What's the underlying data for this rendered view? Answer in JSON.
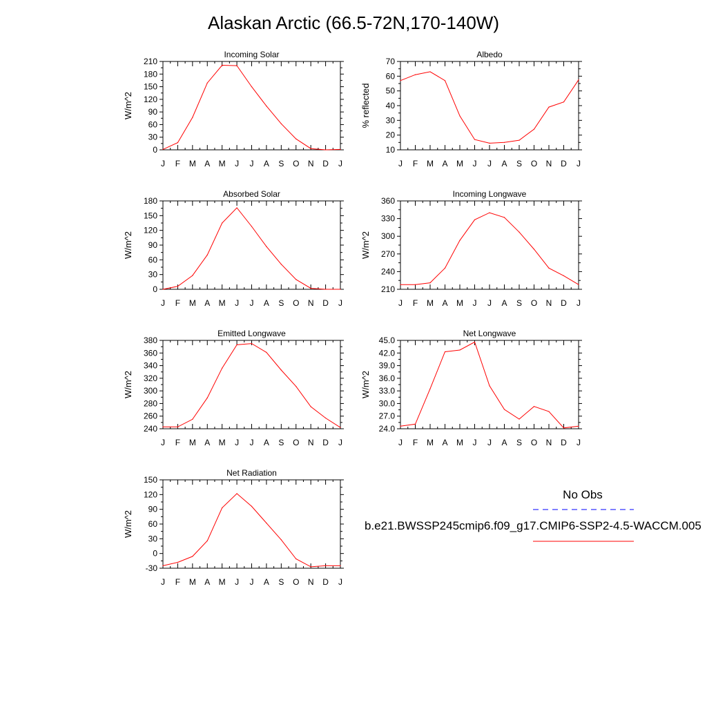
{
  "page_title": "Alaskan Arctic (66.5-72N,170-140W)",
  "colors": {
    "model_line": "#ff0000",
    "obs_line": "#0000ff",
    "axes": "#000000"
  },
  "legend": {
    "obs_label": "No Obs",
    "model_label": "b.e21.BWSSP245cmip6.f09_g17.CMIP6-SSP2-4.5-WACCM.005"
  },
  "chart_data": [
    {
      "type": "line",
      "title": "Incoming Solar",
      "ylabel": "W/m^2",
      "ylim": [
        0,
        210
      ],
      "yticks": [
        "0",
        "30",
        "60",
        "90",
        "120",
        "150",
        "180",
        "210"
      ],
      "categories": [
        "J",
        "F",
        "M",
        "A",
        "M",
        "J",
        "J",
        "A",
        "S",
        "O",
        "N",
        "D",
        "J"
      ],
      "series": [
        {
          "values": [
            1,
            17,
            77,
            159,
            201,
            200,
            150,
            104,
            62,
            26,
            3,
            0,
            1
          ]
        }
      ]
    },
    {
      "type": "line",
      "title": "Albedo",
      "ylabel": "% reflected",
      "ylim": [
        10,
        70
      ],
      "yticks": [
        "10",
        "20",
        "30",
        "40",
        "50",
        "60",
        "70"
      ],
      "categories": [
        "J",
        "F",
        "M",
        "A",
        "M",
        "J",
        "J",
        "A",
        "S",
        "O",
        "N",
        "D",
        "J"
      ],
      "series": [
        {
          "values": [
            57,
            61,
            63,
            57,
            33,
            17,
            14.5,
            15,
            16.5,
            24,
            39,
            42.5,
            57.5
          ]
        }
      ]
    },
    {
      "type": "line",
      "title": "Absorbed Solar",
      "ylabel": "W/m^2",
      "ylim": [
        0,
        180
      ],
      "yticks": [
        "0",
        "30",
        "60",
        "90",
        "120",
        "150",
        "180"
      ],
      "categories": [
        "J",
        "F",
        "M",
        "A",
        "M",
        "J",
        "J",
        "A",
        "S",
        "O",
        "N",
        "D",
        "J"
      ],
      "series": [
        {
          "values": [
            0,
            6,
            28,
            70,
            135,
            166,
            128,
            87,
            51,
            20,
            2,
            0,
            0
          ]
        }
      ]
    },
    {
      "type": "line",
      "title": "Incoming Longwave",
      "ylabel": "W/m^2",
      "ylim": [
        210,
        360
      ],
      "yticks": [
        "210",
        "240",
        "270",
        "300",
        "330",
        "360"
      ],
      "categories": [
        "J",
        "F",
        "M",
        "A",
        "M",
        "J",
        "J",
        "A",
        "S",
        "O",
        "N",
        "D",
        "J"
      ],
      "series": [
        {
          "values": [
            218,
            218,
            221,
            246,
            293,
            328,
            340,
            332,
            307,
            278,
            246,
            233,
            218
          ]
        }
      ]
    },
    {
      "type": "line",
      "title": "Emitted Longwave",
      "ylabel": "W/m^2",
      "ylim": [
        240,
        380
      ],
      "yticks": [
        "240",
        "260",
        "280",
        "300",
        "320",
        "340",
        "360",
        "380"
      ],
      "categories": [
        "J",
        "F",
        "M",
        "A",
        "M",
        "J",
        "J",
        "A",
        "S",
        "O",
        "N",
        "D",
        "J"
      ],
      "series": [
        {
          "values": [
            243,
            243,
            255,
            289,
            336,
            373,
            375,
            361,
            333,
            307,
            275,
            257,
            242
          ]
        }
      ]
    },
    {
      "type": "line",
      "title": "Net Longwave",
      "ylabel": "W/m^2",
      "ylim": [
        24,
        45
      ],
      "yticks": [
        "24.0",
        "27.0",
        "30.0",
        "33.0",
        "36.0",
        "39.0",
        "42.0",
        "45.0"
      ],
      "categories": [
        "J",
        "F",
        "M",
        "A",
        "M",
        "J",
        "J",
        "A",
        "S",
        "O",
        "N",
        "D",
        "J"
      ],
      "series": [
        {
          "values": [
            24.6,
            25.1,
            33.5,
            42.3,
            42.7,
            44.6,
            34.2,
            28.6,
            26.3,
            29.3,
            28.1,
            24.2,
            24.6
          ]
        }
      ]
    },
    {
      "type": "line",
      "title": "Net Radiation",
      "ylabel": "W/m^2",
      "ylim": [
        -30,
        150
      ],
      "yticks": [
        "-30",
        "0",
        "30",
        "60",
        "90",
        "120",
        "150"
      ],
      "categories": [
        "J",
        "F",
        "M",
        "A",
        "M",
        "J",
        "J",
        "A",
        "S",
        "O",
        "N",
        "D",
        "J"
      ],
      "series": [
        {
          "values": [
            -25,
            -18,
            -6,
            26,
            93,
            122,
            96,
            62,
            28,
            -11,
            -27,
            -25,
            -25
          ]
        }
      ]
    }
  ]
}
